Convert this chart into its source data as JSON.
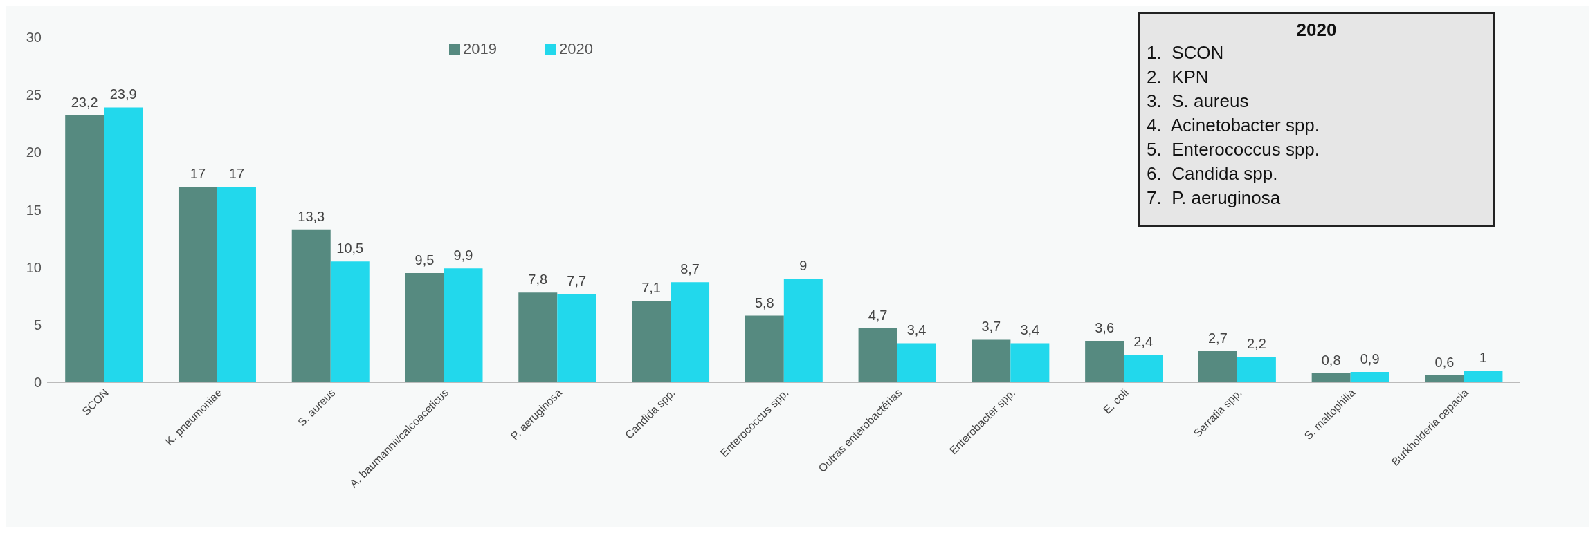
{
  "chart_data": {
    "type": "bar",
    "categories": [
      "SCON",
      "K. pneumoniae",
      "S. aureus",
      "A. baumannii/calcoaceticus",
      "P. aeruginosa",
      "Candida spp.",
      "Enterococcus spp.",
      "Outras enterobactérias",
      "Enterobacter spp.",
      "E. coli",
      "Serratia spp.",
      "S. maltophilia",
      "Burkholderia cepacia"
    ],
    "series": [
      {
        "name": "2019",
        "color": "#568a80",
        "values": [
          23.2,
          17,
          13.3,
          9.5,
          7.8,
          7.1,
          5.8,
          4.7,
          3.7,
          3.6,
          2.7,
          0.8,
          0.6
        ],
        "value_labels": [
          "23,2",
          "17",
          "13,3",
          "9,5",
          "7,8",
          "7,1",
          "5,8",
          "4,7",
          "3,7",
          "3,6",
          "2,7",
          "0,8",
          "0,6"
        ]
      },
      {
        "name": "2020",
        "color": "#22d8ec",
        "values": [
          23.9,
          17,
          10.5,
          9.9,
          7.7,
          8.7,
          9,
          3.4,
          3.4,
          2.4,
          2.2,
          0.9,
          1
        ],
        "value_labels": [
          "23,9",
          "17",
          "10,5",
          "9,9",
          "7,7",
          "8,7",
          "9",
          "3,4",
          "3,4",
          "2,4",
          "2,2",
          "0,9",
          "1"
        ]
      }
    ],
    "ylim": [
      0,
      30
    ],
    "yticks": [
      0,
      5,
      10,
      15,
      20,
      25,
      30
    ],
    "grid": false,
    "legend": "top",
    "annotations": [
      "2020",
      "1.  SCON",
      "2.  KPN",
      "3.  S. aureus",
      "4.  Acinetobacter spp.",
      "5.  Enterococcus spp.",
      "6.  Candida spp.",
      "7.  P. aeruginosa"
    ]
  }
}
